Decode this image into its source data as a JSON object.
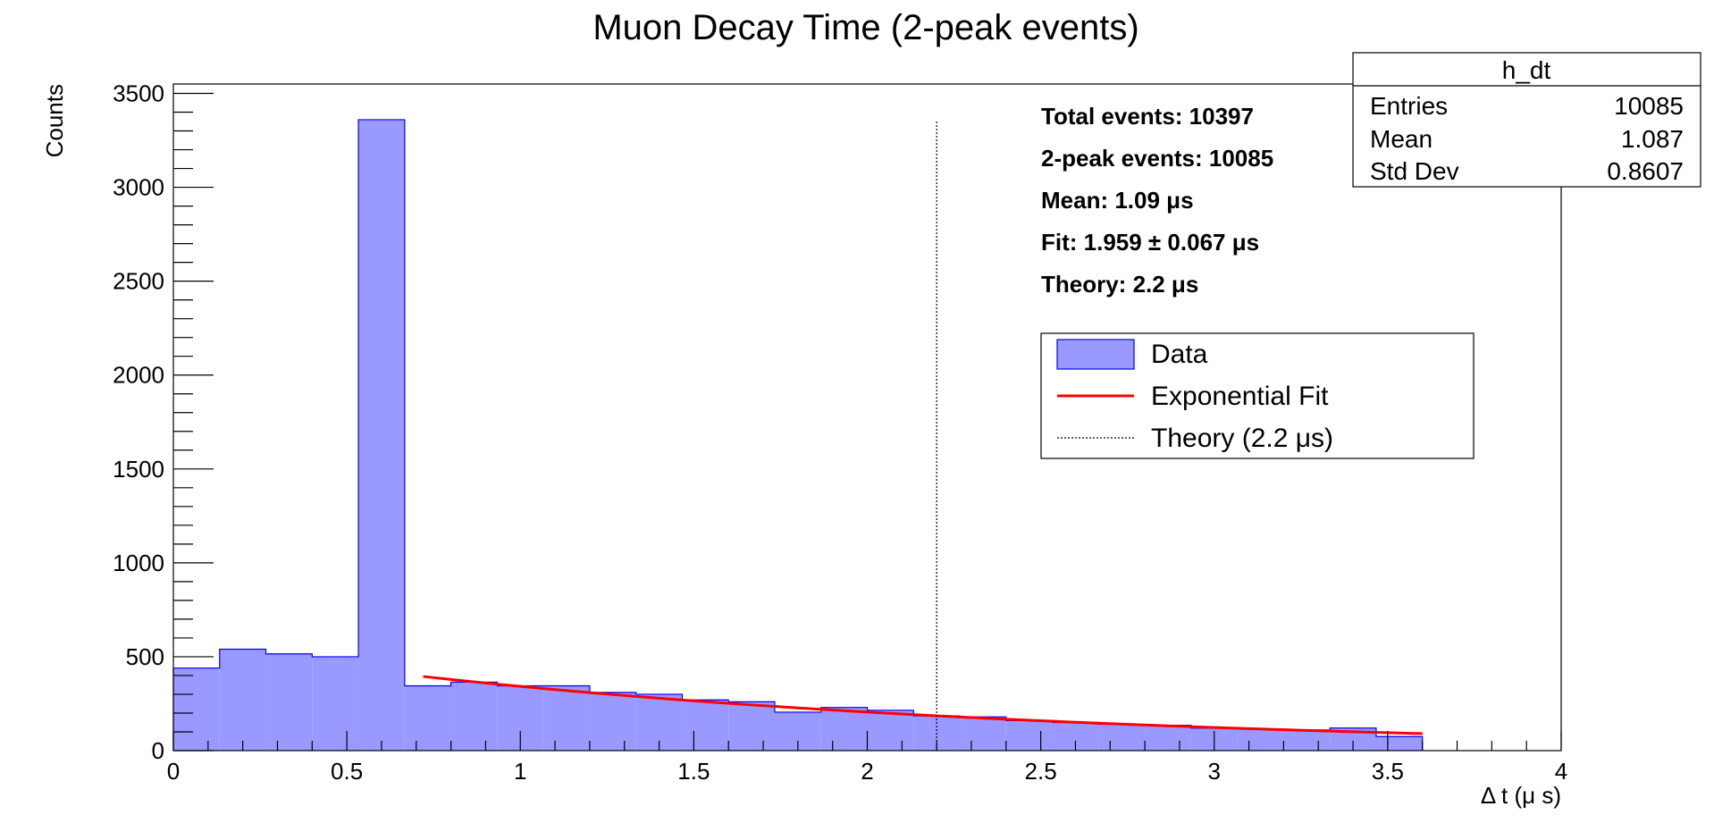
{
  "chart_data": {
    "type": "bar",
    "title": "Muon Decay Time (2-peak events)",
    "xlabel": "Δ t (μ s)",
    "ylabel": "Counts",
    "xlim": [
      0,
      4
    ],
    "ylim": [
      0,
      3550
    ],
    "x_ticks": [
      "0",
      "0.5",
      "1",
      "1.5",
      "2",
      "2.5",
      "3",
      "3.5",
      "4"
    ],
    "y_ticks": [
      "0",
      "500",
      "1000",
      "1500",
      "2000",
      "2500",
      "3000",
      "3500"
    ],
    "bin_edges": [
      0,
      0.1333,
      0.2667,
      0.4,
      0.5333,
      0.6667,
      0.8,
      0.9333,
      1.0667,
      1.2,
      1.3333,
      1.4667,
      1.6,
      1.7333,
      1.8667,
      2.0,
      2.1333,
      2.2667,
      2.4,
      2.5333,
      2.6667,
      2.8,
      2.9333,
      3.0667,
      3.2,
      3.3333,
      3.4667,
      3.6
    ],
    "series": [
      {
        "name": "Data",
        "color": "#9999ff",
        "edge_color": "#0000ff",
        "values": [
          440,
          540,
          515,
          500,
          3360,
          345,
          365,
          345,
          345,
          310,
          300,
          270,
          260,
          205,
          230,
          215,
          185,
          180,
          160,
          150,
          140,
          135,
          120,
          115,
          110,
          120,
          75
        ]
      },
      {
        "name": "Exponential Fit",
        "color": "#ff0000",
        "fit": {
          "model": "exponential",
          "amplitude_at_0": 570,
          "tau": 1.959,
          "x_range": [
            0.72,
            3.6
          ]
        }
      },
      {
        "name": "Theory (2.2 μs)",
        "color": "#000000",
        "line_x": 2.2,
        "y_top": 3350
      }
    ],
    "stats_box": {
      "title": "h_dt",
      "rows": [
        {
          "label": "Entries",
          "value": "10085"
        },
        {
          "label": "Mean",
          "value": "1.087"
        },
        {
          "label": "Std Dev",
          "value": "0.8607"
        }
      ]
    },
    "annotations": [
      "Total events: 10397",
      "2-peak events: 10085",
      "Mean: 1.09 μs",
      "Fit: 1.959 ± 0.067 μs",
      "Theory: 2.2 μs"
    ],
    "legend": {
      "placement": "upper-right",
      "entries": [
        "Data",
        "Exponential Fit",
        "Theory (2.2 μs)"
      ]
    },
    "grid": false
  }
}
